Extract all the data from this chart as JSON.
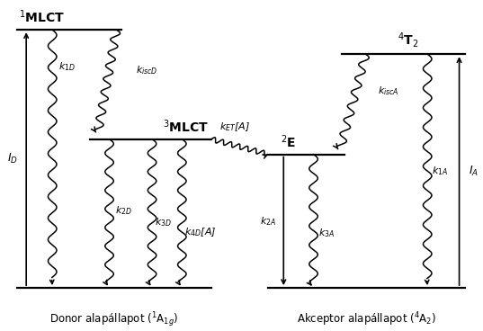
{
  "fig_width": 5.37,
  "fig_height": 3.68,
  "dpi": 100,
  "bg_color": "#ffffff",
  "label_donor_ground": "Donor alapállapot ($^{1}$A$_{1g}$)",
  "label_acceptor_ground": "Akceptor alapállapot ($^{4}$A$_{2}$)",
  "label_1MLCT": "$^{1}$MLCT",
  "label_3MLCT": "$^{3}$MLCT",
  "label_4T2": "$^{4}$T$_{2}$",
  "label_2E": "$^{2}$E",
  "label_ID": "$I_D$",
  "label_IA": "$I_A$",
  "label_k1D": "$k_{1D}$",
  "label_k2D": "$k_{2D}$",
  "label_k3D": "$k_{3D}$",
  "label_k4D": "$k_{4D}$[A]",
  "label_kiscD": "$k_{iscD}$",
  "label_kET": "$k_{ET}$[A]",
  "label_kiscA": "$k_{iscA}$",
  "label_k1A": "$k_{1A}$",
  "label_k2A": "$k_{2A}$",
  "label_k3A": "$k_{3A}$"
}
